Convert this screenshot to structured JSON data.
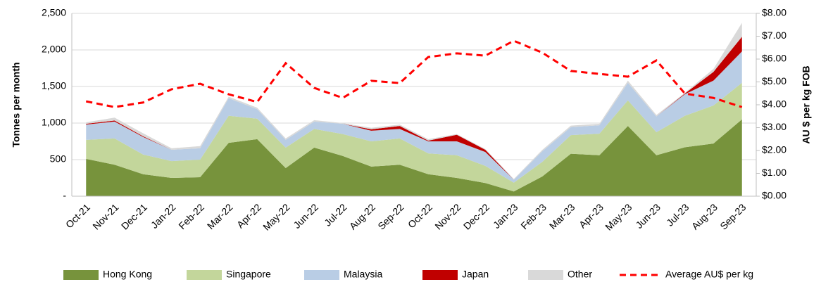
{
  "chart_data": {
    "type": "stacked-area-line",
    "y_label": "Tonnes per month",
    "y2_label": "AU $ per kg FOB",
    "categories": [
      "Oct-21",
      "Nov-21",
      "Dec-21",
      "Jan-22",
      "Feb-22",
      "Mar-22",
      "Apr-22",
      "May-22",
      "Jun-22",
      "Jul-22",
      "Aug-22",
      "Sep-22",
      "Oct-22",
      "Nov-22",
      "Dec-22",
      "Jan-23",
      "Feb-23",
      "Mar-23",
      "Apr-23",
      "May-23",
      "Jun-23",
      "Jul-23",
      "Aug-23",
      "Sep-23"
    ],
    "series": [
      {
        "name": "Hong Kong",
        "color": "#77933c",
        "values": [
          510,
          430,
          300,
          250,
          260,
          730,
          780,
          385,
          665,
          550,
          405,
          430,
          300,
          250,
          180,
          65,
          270,
          580,
          560,
          960,
          560,
          670,
          720,
          1050
        ]
      },
      {
        "name": "Singapore",
        "color": "#c3d69b",
        "values": [
          260,
          360,
          270,
          230,
          240,
          370,
          280,
          280,
          255,
          300,
          345,
          360,
          285,
          310,
          235,
          120,
          200,
          255,
          295,
          350,
          315,
          430,
          520,
          500
        ]
      },
      {
        "name": "Malaysia",
        "color": "#b9cde5",
        "values": [
          210,
          230,
          240,
          155,
          155,
          240,
          130,
          105,
          100,
          140,
          145,
          130,
          165,
          190,
          190,
          40,
          145,
          110,
          115,
          240,
          215,
          295,
          340,
          430
        ]
      },
      {
        "name": "Japan",
        "color": "#c00000",
        "values": [
          10,
          15,
          10,
          0,
          0,
          0,
          0,
          0,
          0,
          0,
          20,
          40,
          10,
          90,
          30,
          0,
          0,
          0,
          0,
          0,
          0,
          10,
          120,
          200
        ]
      },
      {
        "name": "Other",
        "color": "#d9d9d9",
        "values": [
          20,
          40,
          40,
          20,
          30,
          20,
          20,
          20,
          20,
          10,
          20,
          20,
          20,
          10,
          10,
          10,
          20,
          20,
          20,
          30,
          20,
          10,
          40,
          190
        ]
      },
      {
        "name": "Average AU$ per kg",
        "color": "#ff0000",
        "axis": "y2",
        "line": "dashed",
        "values": [
          4.15,
          3.9,
          4.1,
          4.68,
          4.92,
          4.46,
          4.12,
          5.82,
          4.74,
          4.3,
          5.05,
          4.95,
          6.09,
          6.25,
          6.15,
          6.8,
          6.28,
          5.48,
          5.35,
          5.23,
          5.94,
          4.49,
          4.3,
          3.9
        ]
      }
    ],
    "ylim": [
      0,
      2500
    ],
    "yticks": [
      {
        "value": 0,
        "label": "-"
      },
      500,
      {
        "value": 1000,
        "label": "1,000"
      },
      {
        "value": 1500,
        "label": "1,500"
      },
      {
        "value": 2000,
        "label": "2,000"
      },
      {
        "value": 2500,
        "label": "2,500"
      }
    ],
    "y2lim": [
      0,
      8
    ],
    "y2ticks": [
      {
        "value": 0,
        "label": "$0.00"
      },
      {
        "value": 1,
        "label": "$1.00"
      },
      {
        "value": 2,
        "label": "$2.00"
      },
      {
        "value": 3,
        "label": "$3.00"
      },
      {
        "value": 4,
        "label": "$4.00"
      },
      {
        "value": 5,
        "label": "$5.00"
      },
      {
        "value": 6,
        "label": "$6.00"
      },
      {
        "value": 7,
        "label": "$7.00"
      },
      {
        "value": 8,
        "label": "$8.00"
      }
    ],
    "grid": true,
    "legend": "bottom"
  }
}
